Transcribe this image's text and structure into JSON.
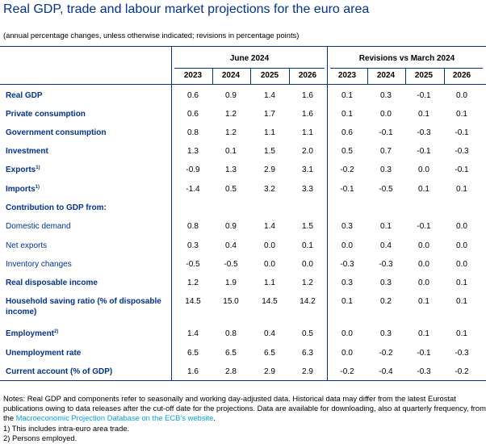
{
  "title": "Real GDP, trade and labour market projections for the euro area",
  "subtitle": "(annual percentage changes, unless otherwise indicated; revisions in percentage points)",
  "groups": {
    "projections": "June 2024",
    "revisions": "Revisions vs March 2024"
  },
  "years": [
    "2023",
    "2024",
    "2025",
    "2026",
    "2023",
    "2024",
    "2025",
    "2026"
  ],
  "rows": [
    {
      "label": "Real GDP",
      "sup": "",
      "bold": true,
      "values": [
        "0.6",
        "0.9",
        "1.4",
        "1.6",
        "0.1",
        "0.3",
        "-0.1",
        "0.0"
      ]
    },
    {
      "label": "Private consumption",
      "sup": "",
      "bold": true,
      "values": [
        "0.6",
        "1.2",
        "1.7",
        "1.6",
        "0.1",
        "0.0",
        "0.1",
        "0.1"
      ]
    },
    {
      "label": "Government consumption",
      "sup": "",
      "bold": true,
      "values": [
        "0.8",
        "1.2",
        "1.1",
        "1.1",
        "0.6",
        "-0.1",
        "-0.3",
        "-0.1"
      ]
    },
    {
      "label": "Investment",
      "sup": "",
      "bold": true,
      "values": [
        "1.3",
        "0.1",
        "1.5",
        "2.0",
        "0.5",
        "0.7",
        "-0.1",
        "-0.3"
      ]
    },
    {
      "label": "Exports",
      "sup": "1)",
      "bold": true,
      "values": [
        "-0.9",
        "1.3",
        "2.9",
        "3.1",
        "-0.2",
        "0.3",
        "0.0",
        "-0.1"
      ]
    },
    {
      "label": "Imports",
      "sup": "1)",
      "bold": true,
      "values": [
        "-1.4",
        "0.5",
        "3.2",
        "3.3",
        "-0.1",
        "-0.5",
        "0.1",
        "0.1"
      ]
    },
    {
      "label": "Contribution to GDP from:",
      "sup": "",
      "bold": true,
      "values": [
        "",
        "",
        "",
        "",
        "",
        "",
        "",
        ""
      ]
    },
    {
      "label": "Domestic demand",
      "sup": "",
      "bold": false,
      "values": [
        "0.8",
        "0.9",
        "1.4",
        "1.5",
        "0.3",
        "0.1",
        "-0.1",
        "0.0"
      ]
    },
    {
      "label": "Net exports",
      "sup": "",
      "bold": false,
      "values": [
        "0.3",
        "0.4",
        "0.0",
        "0.1",
        "0.0",
        "0.4",
        "0.0",
        "0.0"
      ]
    },
    {
      "label": "Inventory changes",
      "sup": "",
      "bold": false,
      "values": [
        "-0.5",
        "-0.5",
        "0.0",
        "0.0",
        "-0.3",
        "-0.3",
        "0.0",
        "0.0"
      ]
    },
    {
      "label": "Real disposable income",
      "sup": "",
      "bold": true,
      "values": [
        "1.2",
        "1.9",
        "1.1",
        "1.2",
        "0.3",
        "0.3",
        "0.0",
        "0.1"
      ]
    },
    {
      "label": "Household saving ratio (% of disposable income)",
      "sup": "",
      "bold": true,
      "values": [
        "14.5",
        "15.0",
        "14.5",
        "14.2",
        "0.1",
        "0.2",
        "0.1",
        "0.1"
      ]
    },
    {
      "label": "Employment",
      "sup": "2)",
      "bold": true,
      "values": [
        "1.4",
        "0.8",
        "0.4",
        "0.5",
        "0.0",
        "0.3",
        "0.1",
        "0.1"
      ]
    },
    {
      "label": "Unemployment rate",
      "sup": "",
      "bold": true,
      "values": [
        "6.5",
        "6.5",
        "6.5",
        "6.3",
        "0.0",
        "-0.2",
        "-0.1",
        "-0.3"
      ]
    },
    {
      "label": "Current account (% of GDP)",
      "sup": "",
      "bold": true,
      "values": [
        "1.6",
        "2.8",
        "2.9",
        "2.9",
        "-0.2",
        "-0.4",
        "-0.3",
        "-0.2"
      ]
    }
  ],
  "notes": {
    "main_before_link": "Notes: Real GDP and components refer to seasonally and working day-adjusted data. Historical data may differ from the latest Eurostat publications owing to data releases after the cut-off date for the projections. Data are available for downloading, also at quarterly frequency, from the ",
    "link_text": "Macroeconomic Projection Database on the ECB’s website",
    "main_after_link": ".",
    "note1": "1) This includes intra-euro area trade.",
    "note2": "2) Persons employed."
  },
  "colors": {
    "title": "#003299",
    "rules": "#003299",
    "link": "#00a0e8"
  }
}
